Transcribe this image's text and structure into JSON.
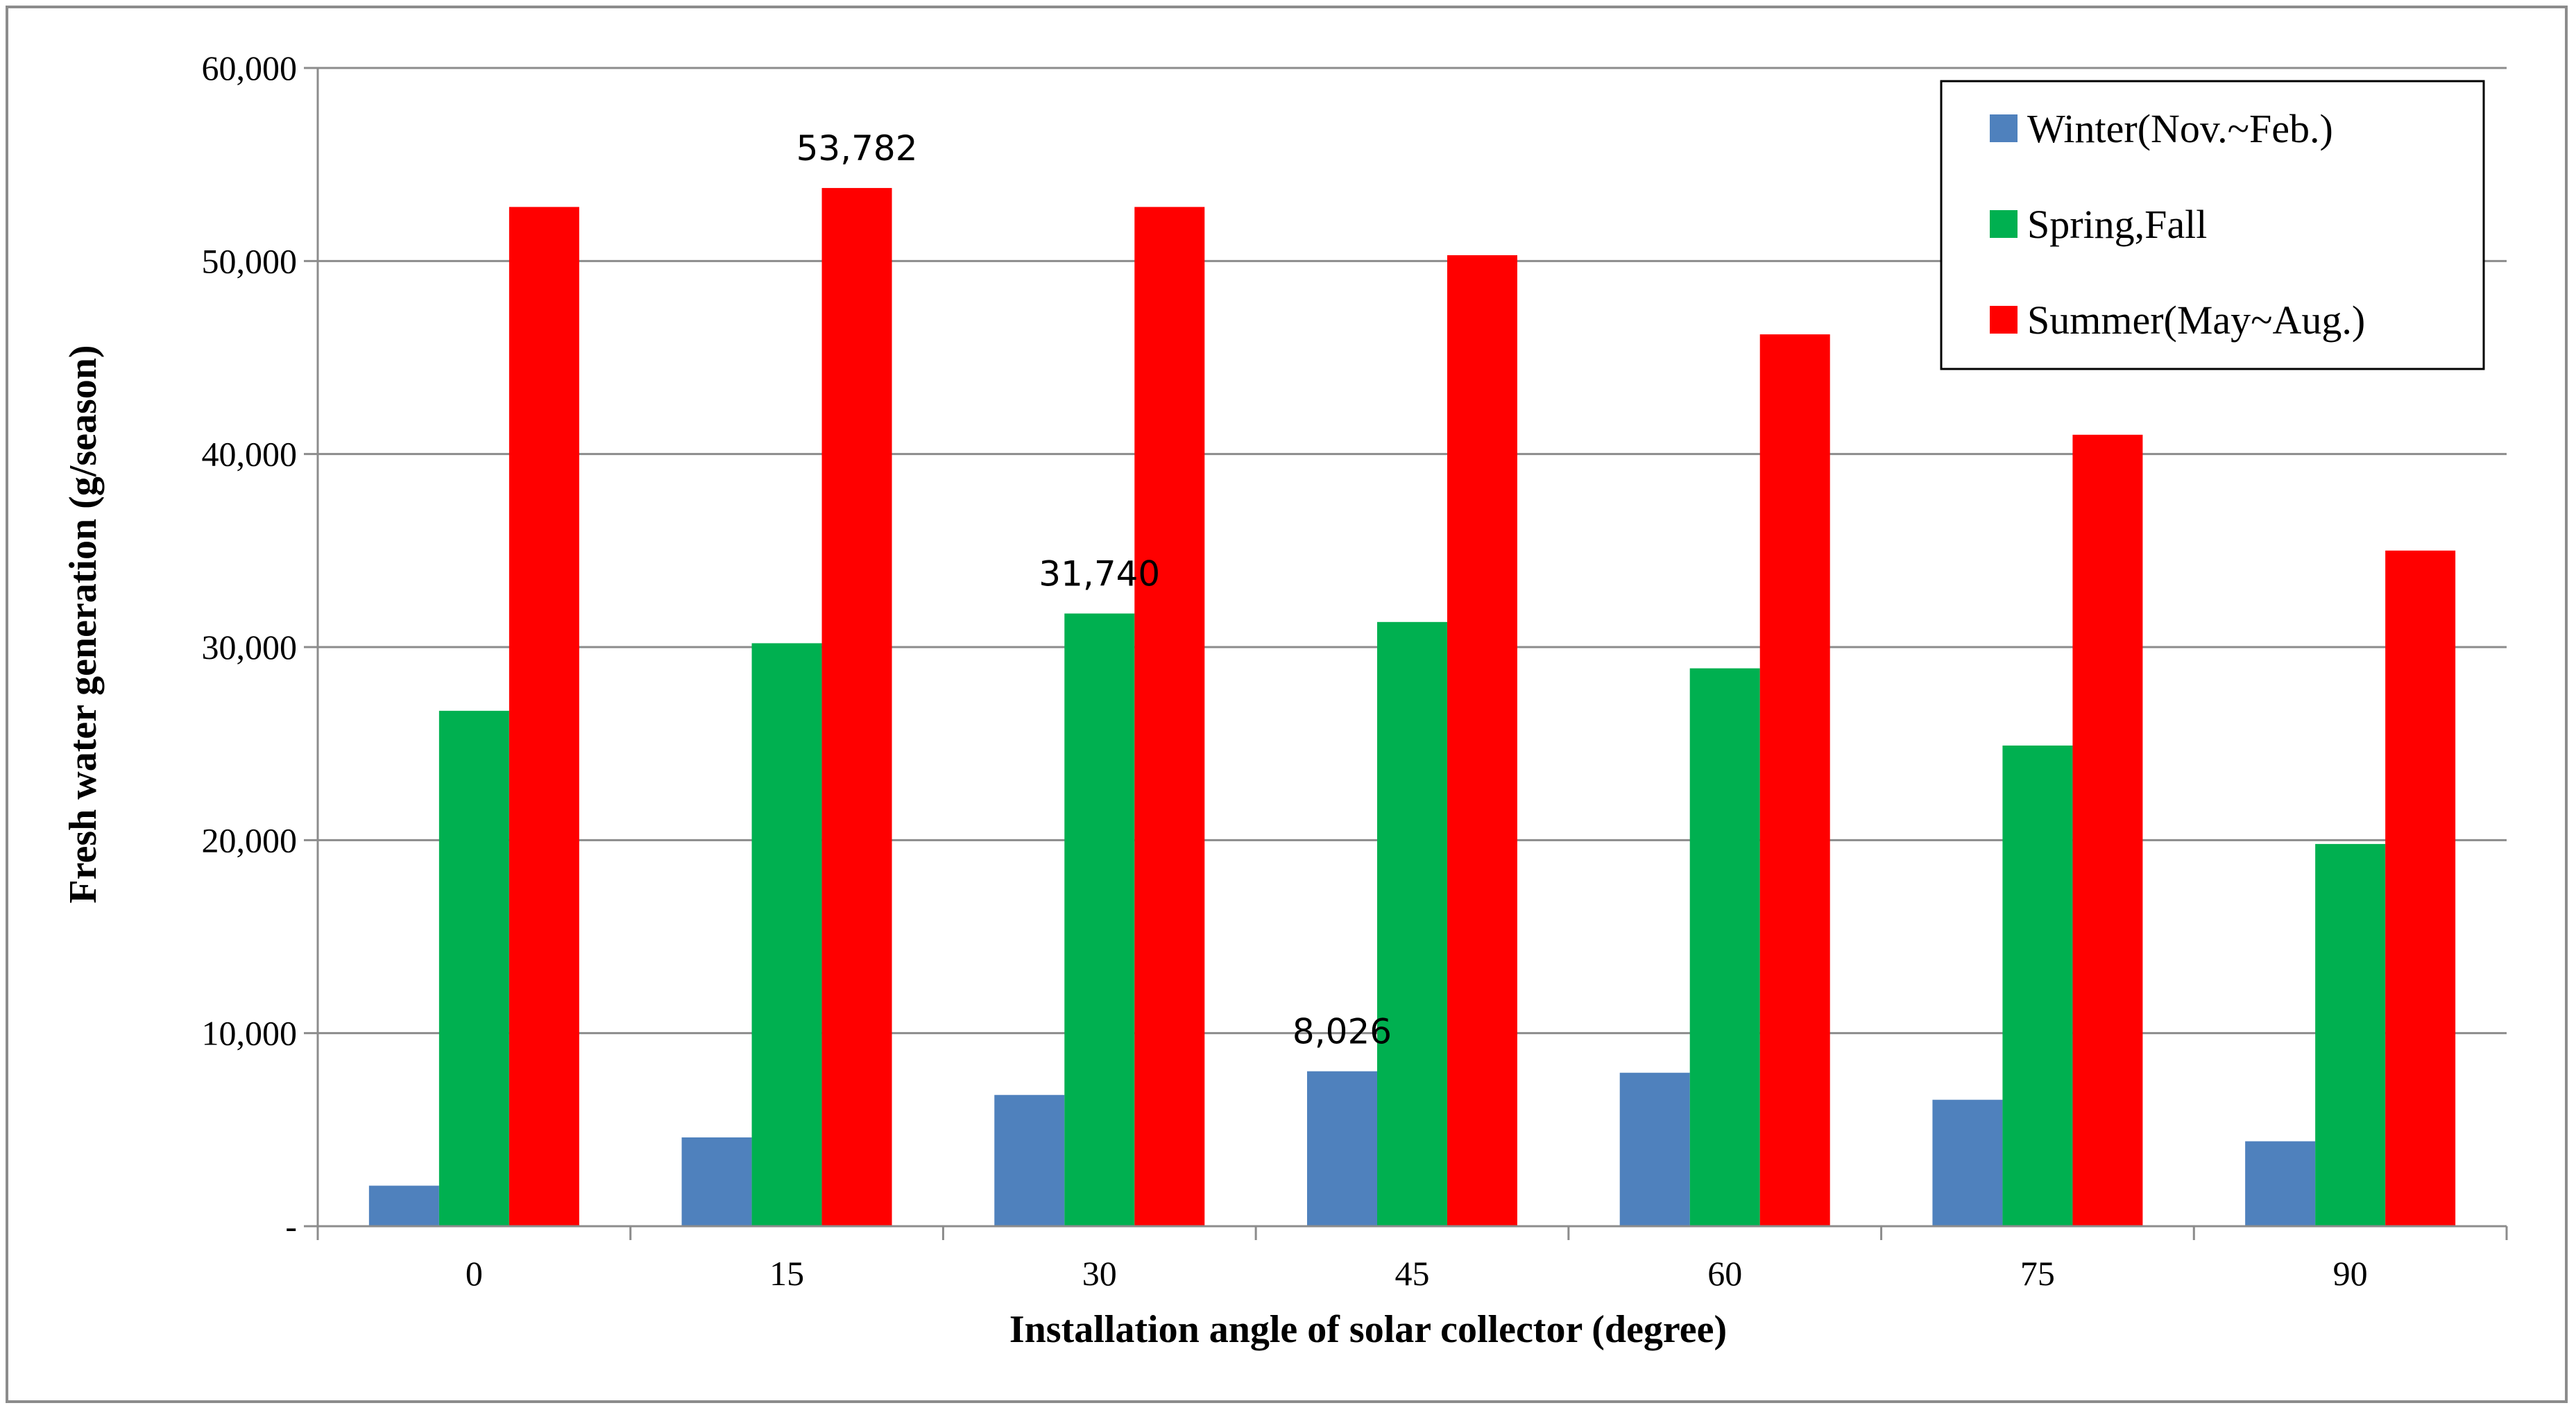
{
  "chart_data": {
    "type": "bar",
    "xlabel": "Installation angle of solar collector (degree)",
    "ylabel": "Fresh water generation (g/season)",
    "categories": [
      "0",
      "15",
      "30",
      "45",
      "60",
      "75",
      "90"
    ],
    "ylim": [
      0,
      60000
    ],
    "yticks": [
      {
        "value": 0,
        "label": "-"
      },
      {
        "value": 10000,
        "label": "10,000"
      },
      {
        "value": 20000,
        "label": "20,000"
      },
      {
        "value": 30000,
        "label": "30,000"
      },
      {
        "value": 40000,
        "label": "40,000"
      },
      {
        "value": 50000,
        "label": "50,000"
      },
      {
        "value": 60000,
        "label": "60,000"
      }
    ],
    "grid": true,
    "legend_position": "top-right",
    "series": [
      {
        "name": "Winter(Nov.~Feb.)",
        "color": "#4f81bd",
        "values": [
          2100,
          4600,
          6800,
          8026,
          7950,
          6550,
          4400
        ]
      },
      {
        "name": "Spring,Fall",
        "color": "#00b050",
        "values": [
          26700,
          30200,
          31740,
          31300,
          28900,
          24900,
          19800
        ]
      },
      {
        "name": "Summer(May~Aug.)",
        "color": "#ff0000",
        "values": [
          52800,
          53782,
          52800,
          50300,
          46200,
          41000,
          35000
        ]
      }
    ],
    "annotations": [
      {
        "series": 2,
        "index": 1,
        "text": "53,782"
      },
      {
        "series": 1,
        "index": 2,
        "text": "31,740"
      },
      {
        "series": 0,
        "index": 3,
        "text": "8,026"
      }
    ]
  }
}
